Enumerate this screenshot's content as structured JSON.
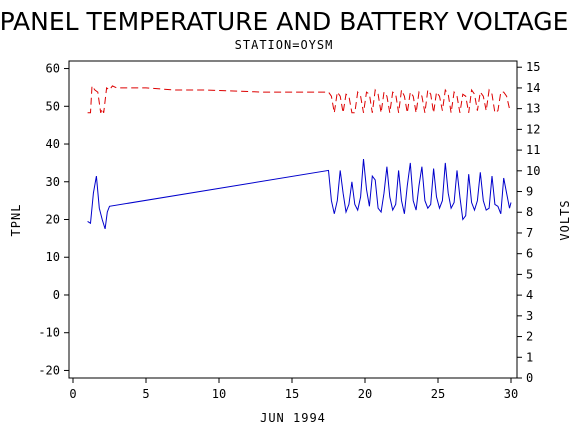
{
  "chart_data": {
    "type": "line",
    "title": "PANEL TEMPERATURE AND BATTERY VOLTAGE",
    "subtitle": "STATION=OYSM",
    "xlabel": "JUN 1994",
    "ylabel_left": "TPNL",
    "ylabel_right": "VOLTS",
    "xlim": [
      0,
      30
    ],
    "ylim_left": [
      -22,
      62
    ],
    "ylim_right": [
      0,
      15.3
    ],
    "x_ticks": [
      0,
      5,
      10,
      15,
      20,
      25,
      30
    ],
    "y_left_ticks": [
      -20,
      -10,
      0,
      10,
      20,
      30,
      40,
      50,
      60
    ],
    "y_right_ticks": [
      0,
      1,
      2,
      3,
      4,
      5,
      6,
      7,
      8,
      9,
      10,
      11,
      12,
      13,
      14,
      15
    ],
    "grid": false,
    "series": [
      {
        "axis": "left",
        "color": "#0000cc",
        "style": "solid",
        "x": [
          1.0,
          1.2,
          1.4,
          1.6,
          1.8,
          2.0,
          2.2,
          2.35,
          2.5,
          17.5,
          17.7,
          17.9,
          18.1,
          18.3,
          18.5,
          18.7,
          18.9,
          19.1,
          19.3,
          19.5,
          19.7,
          19.9,
          20.1,
          20.3,
          20.5,
          20.7,
          20.9,
          21.1,
          21.3,
          21.5,
          21.7,
          21.9,
          22.1,
          22.3,
          22.5,
          22.7,
          22.9,
          23.1,
          23.3,
          23.5,
          23.7,
          23.9,
          24.1,
          24.3,
          24.5,
          24.7,
          24.9,
          25.1,
          25.3,
          25.5,
          25.7,
          25.9,
          26.1,
          26.3,
          26.5,
          26.7,
          26.9,
          27.1,
          27.3,
          27.5,
          27.7,
          27.9,
          28.1,
          28.3,
          28.5,
          28.7,
          28.9,
          29.1,
          29.3,
          29.5,
          29.7,
          29.9,
          30.0
        ],
        "y": [
          19.5,
          19.0,
          27.0,
          31.5,
          23.0,
          20.0,
          17.5,
          22.0,
          23.5,
          33.0,
          25.0,
          21.5,
          25.0,
          33.0,
          27.0,
          22.0,
          24.0,
          30.0,
          24.0,
          22.5,
          26.0,
          36.0,
          28.0,
          23.5,
          31.5,
          30.5,
          23.0,
          22.0,
          27.0,
          34.0,
          26.0,
          22.5,
          24.0,
          33.0,
          25.0,
          21.5,
          29.0,
          35.0,
          25.0,
          22.5,
          29.0,
          34.0,
          25.0,
          23.0,
          24.0,
          33.5,
          26.0,
          23.0,
          25.0,
          35.0,
          27.0,
          23.0,
          24.5,
          33.0,
          26.0,
          20.0,
          21.0,
          32.0,
          24.5,
          22.5,
          25.0,
          32.5,
          25.0,
          22.5,
          23.0,
          31.5,
          24.0,
          23.5,
          21.5,
          31.0,
          27.0,
          23.0,
          24.5
        ]
      },
      {
        "axis": "right",
        "color": "#dd0000",
        "style": "dashed",
        "x": [
          1.0,
          1.2,
          1.3,
          1.5,
          1.7,
          1.9,
          2.0,
          2.1,
          2.3,
          2.5,
          2.7,
          3.0,
          5.0,
          7.0,
          9.0,
          11.0,
          13.0,
          15.0,
          17.5,
          17.7,
          17.9,
          18.1,
          18.3,
          18.5,
          18.7,
          18.9,
          19.1,
          19.3,
          19.5,
          19.7,
          19.9,
          20.1,
          20.3,
          20.5,
          20.7,
          20.9,
          21.1,
          21.3,
          21.5,
          21.7,
          21.9,
          22.1,
          22.3,
          22.5,
          22.7,
          22.9,
          23.1,
          23.3,
          23.5,
          23.7,
          23.9,
          24.1,
          24.3,
          24.5,
          24.7,
          24.9,
          25.1,
          25.3,
          25.5,
          25.7,
          25.9,
          26.1,
          26.3,
          26.5,
          26.7,
          26.9,
          27.1,
          27.3,
          27.5,
          27.7,
          27.9,
          28.1,
          28.3,
          28.5,
          28.7,
          28.9,
          29.1,
          29.3,
          29.5,
          29.7,
          29.9,
          30.0
        ],
        "y": [
          12.8,
          12.8,
          14.1,
          13.9,
          13.8,
          12.8,
          13.0,
          12.8,
          14.0,
          13.9,
          14.1,
          14.0,
          14.0,
          13.9,
          13.9,
          13.85,
          13.8,
          13.8,
          13.8,
          13.6,
          12.8,
          13.8,
          13.6,
          12.8,
          13.7,
          13.6,
          12.8,
          12.8,
          13.8,
          13.6,
          12.8,
          13.8,
          13.7,
          12.8,
          13.9,
          13.7,
          12.8,
          13.8,
          13.6,
          12.8,
          13.8,
          13.7,
          12.8,
          13.9,
          13.6,
          12.8,
          13.8,
          13.6,
          12.8,
          13.8,
          13.6,
          12.8,
          13.9,
          13.7,
          12.8,
          13.8,
          13.6,
          12.9,
          13.9,
          13.7,
          12.8,
          13.8,
          13.6,
          12.8,
          13.7,
          13.6,
          12.8,
          13.9,
          13.7,
          12.9,
          13.8,
          13.6,
          12.9,
          13.9,
          13.7,
          12.8,
          12.9,
          13.8,
          13.8,
          13.6,
          13.0,
          13.0
        ]
      }
    ]
  }
}
